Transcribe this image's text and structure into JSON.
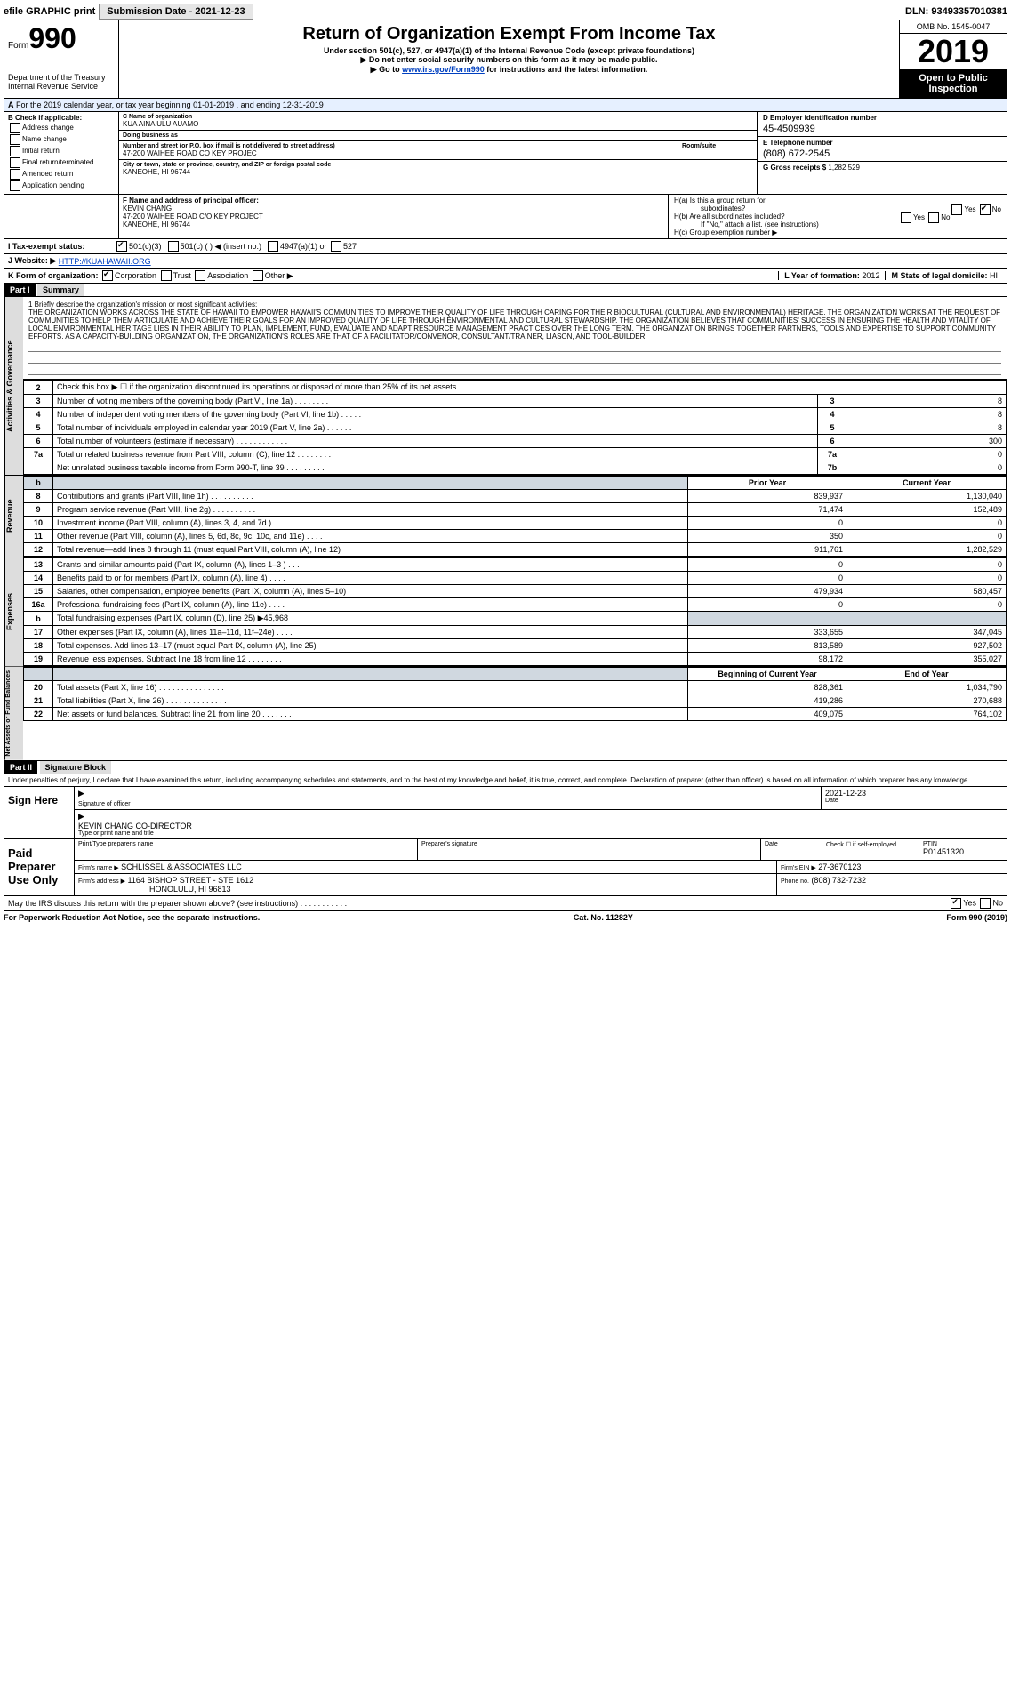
{
  "topbar": {
    "efile": "efile GRAPHIC print",
    "submission_label": "Submission Date - 2021-12-23",
    "dln_label": "DLN: 93493357010381"
  },
  "header": {
    "form_prefix": "Form",
    "form_num": "990",
    "dept1": "Department of the Treasury",
    "dept2": "Internal Revenue Service",
    "title": "Return of Organization Exempt From Income Tax",
    "sub1": "Under section 501(c), 527, or 4947(a)(1) of the Internal Revenue Code (except private foundations)",
    "sub2": "Do not enter social security numbers on this form as it may be made public.",
    "sub3_pre": "Go to ",
    "sub3_link": "www.irs.gov/Form990",
    "sub3_post": " for instructions and the latest information.",
    "omb": "OMB No. 1545-0047",
    "year": "2019",
    "open1": "Open to Public",
    "open2": "Inspection"
  },
  "period": {
    "label_a": "A",
    "text": "For the 2019 calendar year, or tax year beginning 01-01-2019   , and ending 12-31-2019"
  },
  "box_b": {
    "label": "B Check if applicable:",
    "addr": "Address change",
    "name": "Name change",
    "init": "Initial return",
    "final": "Final return/terminated",
    "amend": "Amended return",
    "app": "Application pending"
  },
  "box_c": {
    "name_lbl": "C Name of organization",
    "name": "KUA AINA ULU AUAMO",
    "dba_lbl": "Doing business as",
    "dba": "",
    "addr_lbl": "Number and street (or P.O. box if mail is not delivered to street address)",
    "addr": "47-200 WAIHEE ROAD CO KEY PROJEC",
    "room_lbl": "Room/suite",
    "city_lbl": "City or town, state or province, country, and ZIP or foreign postal code",
    "city": "KANEOHE, HI  96744"
  },
  "box_d": {
    "lbl": "D Employer identification number",
    "val": "45-4509939"
  },
  "box_e": {
    "lbl": "E Telephone number",
    "val": "(808) 672-2545"
  },
  "box_g": {
    "lbl": "G Gross receipts $",
    "val": "1,282,529"
  },
  "box_f": {
    "lbl": "F  Name and address of principal officer:",
    "name": "KEVIN CHANG",
    "addr1": "47-200 WAIHEE ROAD C/O KEY PROJECT",
    "addr2": "KANEOHE, HI  96744"
  },
  "box_h": {
    "ha_lbl": "H(a)  Is this a group return for",
    "ha_sub": "subordinates?",
    "hb_lbl": "H(b)  Are all subordinates included?",
    "hb_note": "If \"No,\" attach a list. (see instructions)",
    "hc_lbl": "H(c)  Group exemption number ▶",
    "yes": "Yes",
    "no": "No"
  },
  "line_i": {
    "lbl": "I   Tax-exempt status:",
    "o1": "501(c)(3)",
    "o2": "501(c) (   ) ◀ (insert no.)",
    "o3": "4947(a)(1) or",
    "o4": "527"
  },
  "line_j": {
    "lbl": "J   Website: ▶",
    "val": "HTTP://KUAHAWAII.ORG"
  },
  "line_k": {
    "lbl": "K Form of organization:",
    "corp": "Corporation",
    "trust": "Trust",
    "assoc": "Association",
    "other": "Other ▶"
  },
  "line_l": {
    "lbl": "L Year of formation:",
    "val": "2012"
  },
  "line_m": {
    "lbl": "M State of legal domicile:",
    "val": "HI"
  },
  "part1": {
    "hdr": "Part I",
    "title": "Summary"
  },
  "mission": {
    "lead": "1  Briefly describe the organization's mission or most significant activities:",
    "text": "THE ORGANIZATION WORKS ACROSS THE STATE OF HAWAII TO EMPOWER HAWAII'S COMMUNITIES TO IMPROVE THEIR QUALITY OF LIFE THROUGH CARING FOR THEIR BIOCULTURAL (CULTURAL AND ENVIRONMENTAL) HERITAGE. THE ORGANIZATION WORKS AT THE REQUEST OF COMMUNITIES TO HELP THEM ARTICULATE AND ACHIEVE THEIR GOALS FOR AN IMPROVED QUALITY OF LIFE THROUGH ENVIRONMENTAL AND CULTURAL STEWARDSHIP. THE ORGANIZATION BELIEVES THAT COMMUNITIES' SUCCESS IN ENSURING THE HEALTH AND VITALITY OF LOCAL ENVIRONMENTAL HERITAGE LIES IN THEIR ABILITY TO PLAN, IMPLEMENT, FUND, EVALUATE AND ADAPT RESOURCE MANAGEMENT PRACTICES OVER THE LONG TERM. THE ORGANIZATION BRINGS TOGETHER PARTNERS, TOOLS AND EXPERTISE TO SUPPORT COMMUNITY EFFORTS. AS A CAPACITY-BUILDING ORGANIZATION, THE ORGANIZATION'S ROLES ARE THAT OF A FACILITATOR/CONVENOR, CONSULTANT/TRAINER, LIASON, AND TOOL-BUILDER."
  },
  "vtabs": {
    "gov": "Activities & Governance",
    "rev": "Revenue",
    "exp": "Expenses",
    "net": "Net Assets or Fund Balances"
  },
  "gov_lines": {
    "l2": "Check this box ▶ ☐  if the organization discontinued its operations or disposed of more than 25% of its net assets.",
    "l3": "Number of voting members of the governing body (Part VI, line 1a)   .    .    .    .    .    .    .    .",
    "l4": "Number of independent voting members of the governing body (Part VI, line 1b)   .    .    .    .    .",
    "l5": "Total number of individuals employed in calendar year 2019 (Part V, line 2a)   .    .    .    .    .    .",
    "l6": "Total number of volunteers (estimate if necessary)   .    .    .    .    .    .    .    .    .    .    .    .",
    "l7a": "Total unrelated business revenue from Part VIII, column (C), line 12   .    .    .    .    .    .    .    .",
    "l7b": "Net unrelated business taxable income from Form 990-T, line 39   .    .    .    .    .    .    .    .    .",
    "v3": "8",
    "v4": "8",
    "v5": "8",
    "v6": "300",
    "v7a": "0",
    "v7b": "0"
  },
  "headers": {
    "l": "b",
    "prior": "Prior Year",
    "current": "Current Year",
    "boy": "Beginning of Current Year",
    "eoy": "End of Year"
  },
  "rev_lines": [
    {
      "n": "8",
      "lbl": "Contributions and grants (Part VIII, line 1h)   .    .    .    .    .    .    .    .    .    .",
      "p": "839,937",
      "c": "1,130,040"
    },
    {
      "n": "9",
      "lbl": "Program service revenue (Part VIII, line 2g)   .    .    .    .    .    .    .    .    .    .",
      "p": "71,474",
      "c": "152,489"
    },
    {
      "n": "10",
      "lbl": "Investment income (Part VIII, column (A), lines 3, 4, and 7d )   .    .    .    .    .    .",
      "p": "0",
      "c": "0"
    },
    {
      "n": "11",
      "lbl": "Other revenue (Part VIII, column (A), lines 5, 6d, 8c, 9c, 10c, and 11e)   .    .    .    .",
      "p": "350",
      "c": "0"
    },
    {
      "n": "12",
      "lbl": "Total revenue—add lines 8 through 11 (must equal Part VIII, column (A), line 12)",
      "p": "911,761",
      "c": "1,282,529"
    }
  ],
  "exp_lines": [
    {
      "n": "13",
      "lbl": "Grants and similar amounts paid (Part IX, column (A), lines 1–3 )   .    .    .",
      "p": "0",
      "c": "0"
    },
    {
      "n": "14",
      "lbl": "Benefits paid to or for members (Part IX, column (A), line 4)   .    .    .    .",
      "p": "0",
      "c": "0"
    },
    {
      "n": "15",
      "lbl": "Salaries, other compensation, employee benefits (Part IX, column (A), lines 5–10)",
      "p": "479,934",
      "c": "580,457"
    },
    {
      "n": "16a",
      "lbl": "Professional fundraising fees (Part IX, column (A), line 11e)   .    .    .    .",
      "p": "0",
      "c": "0"
    },
    {
      "n": "b",
      "lbl": "Total fundraising expenses (Part IX, column (D), line 25) ▶45,968",
      "p": "",
      "c": ""
    },
    {
      "n": "17",
      "lbl": "Other expenses (Part IX, column (A), lines 11a–11d, 11f–24e)   .    .    .    .",
      "p": "333,655",
      "c": "347,045"
    },
    {
      "n": "18",
      "lbl": "Total expenses. Add lines 13–17 (must equal Part IX, column (A), line 25)",
      "p": "813,589",
      "c": "927,502"
    },
    {
      "n": "19",
      "lbl": "Revenue less expenses. Subtract line 18 from line 12   .    .    .    .    .    .    .    .",
      "p": "98,172",
      "c": "355,027"
    }
  ],
  "net_lines": [
    {
      "n": "20",
      "lbl": "Total assets (Part X, line 16)   .    .    .    .    .    .    .    .    .    .    .    .    .    .    .",
      "p": "828,361",
      "c": "1,034,790"
    },
    {
      "n": "21",
      "lbl": "Total liabilities (Part X, line 26)   .    .    .    .    .    .    .    .    .    .    .    .    .    .",
      "p": "419,286",
      "c": "270,688"
    },
    {
      "n": "22",
      "lbl": "Net assets or fund balances. Subtract line 21 from line 20   .    .    .    .    .    .    .",
      "p": "409,075",
      "c": "764,102"
    }
  ],
  "part2": {
    "hdr": "Part II",
    "title": "Signature Block"
  },
  "perjury": "Under penalties of perjury, I declare that I have examined this return, including accompanying schedules and statements, and to the best of my knowledge and belief, it is true, correct, and complete. Declaration of preparer (other than officer) is based on all information of which preparer has any knowledge.",
  "sign": {
    "here": "Sign Here",
    "sig_lbl": "Signature of officer",
    "date": "2021-12-23",
    "date_lbl": "Date",
    "name": "KEVIN CHANG CO-DIRECTOR",
    "name_lbl": "Type or print name and title"
  },
  "paid": {
    "here": "Paid Preparer Use Only",
    "pt_name_lbl": "Print/Type preparer's name",
    "sig_lbl": "Preparer's signature",
    "date_lbl": "Date",
    "check_lbl": "Check ☐ if self-employed",
    "ptin_lbl": "PTIN",
    "ptin": "P01451320",
    "firm_name_lbl": "Firm's name    ▶",
    "firm_name": "SCHLISSEL & ASSOCIATES LLC",
    "firm_ein_lbl": "Firm's EIN ▶",
    "firm_ein": "27-3670123",
    "firm_addr_lbl": "Firm's address ▶",
    "firm_addr1": "1164 BISHOP STREET - STE 1612",
    "firm_addr2": "HONOLULU, HI  96813",
    "phone_lbl": "Phone no.",
    "phone": "(808) 732-7232"
  },
  "discuss": {
    "lbl": "May the IRS discuss this return with the preparer shown above? (see instructions)   .    .    .    .    .    .    .    .    .    .    .",
    "yes": "Yes",
    "no": "No"
  },
  "footer": {
    "left": "For Paperwork Reduction Act Notice, see the separate instructions.",
    "mid": "Cat. No. 11282Y",
    "right": "Form 990 (2019)"
  }
}
